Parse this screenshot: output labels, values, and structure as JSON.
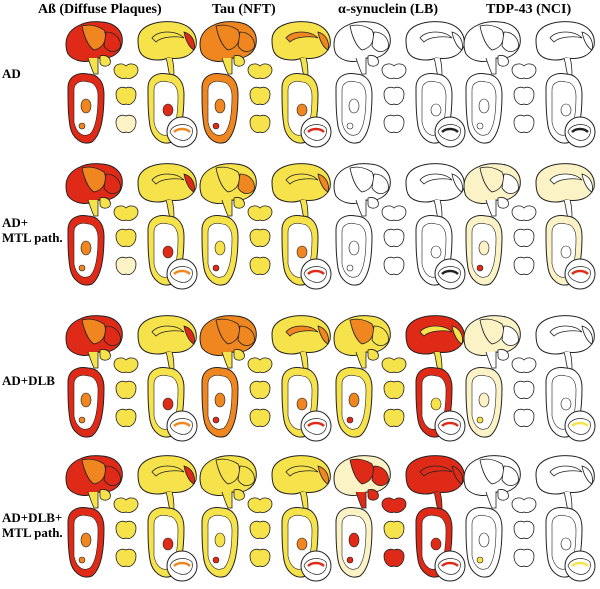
{
  "columns": [
    {
      "label": "Aß (Diffuse Plaques)"
    },
    {
      "label": "Tau (NFT)"
    },
    {
      "label": "α-synuclein (LB)"
    },
    {
      "label": "TDP-43 (NCI)"
    }
  ],
  "rows": [
    {
      "label_lines": [
        "AD"
      ]
    },
    {
      "label_lines": [
        "AD+",
        "MTL path."
      ]
    },
    {
      "label_lines": [
        "AD+DLB"
      ]
    },
    {
      "label_lines": [
        "AD+DLB+",
        "MTL path."
      ]
    }
  ],
  "colors": {
    "severe": "#e02a18",
    "moderate": "#f0861f",
    "mild": "#f6e24a",
    "trace": "#fbf3c6",
    "none": "#ffffff",
    "outline": "#222222"
  },
  "maps": [
    [
      "severe:moderate:severe:mild:mild:severe:mild:moderate:mild:trace",
      "moderate:moderate:moderate:mild:moderate:moderate:mild:severe:mild:mild",
      "none:none:none:none:none:none:none:none:none:none",
      "none:none:none:none:none:none:none:none:none:none"
    ],
    [
      "severe:moderate:severe:mild:mild:severe:mild:moderate:mild:trace",
      "mild:mild:moderate:mild:mild:moderate:mild:severe:mild:mild",
      "none:none:none:none:none:none:none:none:none:none",
      "trace:trace:none:trace:none:none:none:severe:none:none"
    ],
    [
      "severe:moderate:severe:mild:mild:severe:mild:moderate:mild:mild",
      "moderate:moderate:moderate:mild:moderate:moderate:mild:severe:mild:mild",
      "mild:moderate:mild:severe:mild:mild:mild:severe:mild:mild",
      "trace:trace:none:none:none:none:none:mild:none:none"
    ],
    [
      "severe:moderate:severe:mild:mild:severe:mild:moderate:mild:mild",
      "mild:mild:mild:mild:mild:moderate:mild:severe:mild:mild",
      "trace:severe:severe:severe:severe:severe:severe:severe:mild:severe",
      "none:none:none:none:none:none:none:mild:none:none"
    ]
  ]
}
